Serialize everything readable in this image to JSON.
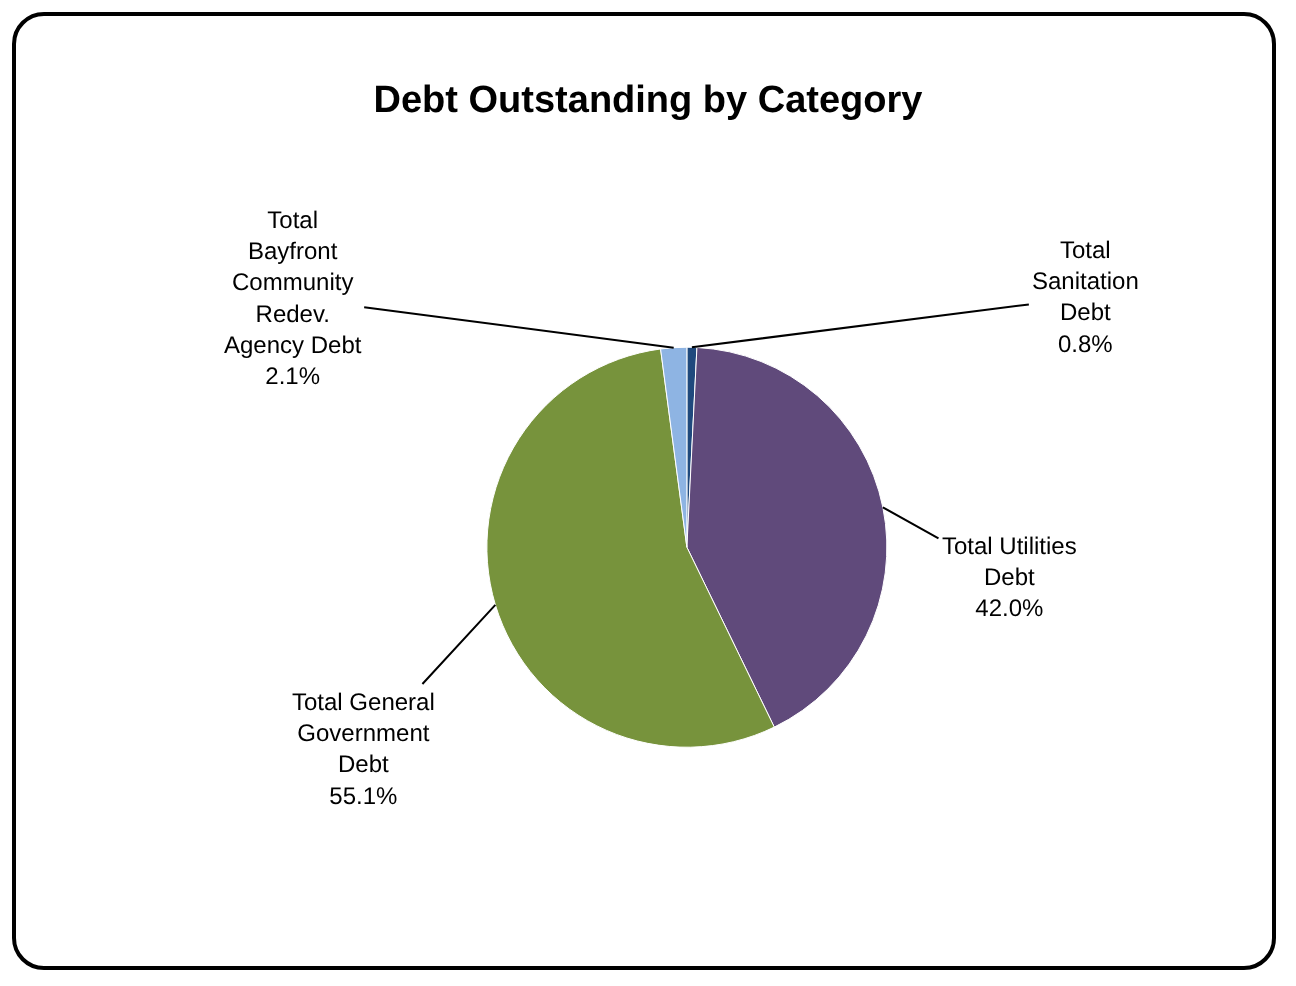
{
  "chart_data": {
    "type": "pie",
    "title": "Debt Outstanding by Category",
    "categories": [
      "Total\nSanitation\nDebt",
      "Total Utilities\nDebt",
      "Total General\nGovernment\nDebt",
      "Total\nBayfront\nCommunity\nRedev.\nAgency Debt"
    ],
    "values": [
      0.8,
      42.0,
      55.1,
      2.1
    ],
    "value_labels": [
      "0.8%",
      "42.0%",
      "55.1%",
      "2.1%"
    ],
    "colors": [
      "#1f497d",
      "#604a7b",
      "#77933c",
      "#8eb4e3"
    ]
  }
}
